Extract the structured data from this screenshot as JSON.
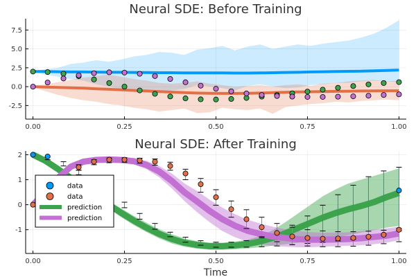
{
  "chart_data": [
    {
      "type": "line",
      "title": "Neural SDE: Before Training",
      "xlabel": "",
      "ylabel": "",
      "xlim": [
        -0.02,
        1.02
      ],
      "ylim": [
        -4.3,
        9.0
      ],
      "xticks": [
        0.0,
        0.25,
        0.5,
        0.75,
        1.0
      ],
      "xtick_labels": [
        "0.00",
        "0.25",
        "0.50",
        "0.75",
        "1.00"
      ],
      "yticks": [
        -2.5,
        0.0,
        2.5,
        5.0,
        7.5
      ],
      "ytick_labels": [
        "-2.5",
        "0.0",
        "2.5",
        "5.0",
        "7.5"
      ],
      "grid": true,
      "legend": false,
      "x": [
        0.0,
        0.0345,
        0.069,
        0.1034,
        0.1379,
        0.1724,
        0.2069,
        0.2414,
        0.2759,
        0.3103,
        0.3448,
        0.3793,
        0.4138,
        0.4483,
        0.4828,
        0.5172,
        0.5517,
        0.5862,
        0.6207,
        0.6552,
        0.6897,
        0.7241,
        0.7586,
        0.7931,
        0.8276,
        0.8621,
        0.8966,
        0.931,
        0.9655,
        1.0
      ],
      "series": [
        {
          "kind": "band",
          "color": "#009af9",
          "opacity": 0.2,
          "upper": [
            2.1,
            2.3,
            2.5,
            3.0,
            3.2,
            3.5,
            3.3,
            3.6,
            4.0,
            4.2,
            4.6,
            4.5,
            4.2,
            4.9,
            5.1,
            5.4,
            4.8,
            5.3,
            5.6,
            5.0,
            5.3,
            5.6,
            5.4,
            5.7,
            5.9,
            6.1,
            6.5,
            7.0,
            7.8,
            8.8
          ],
          "lower": [
            1.9,
            1.6,
            1.3,
            1.0,
            0.8,
            0.3,
            0.0,
            -0.3,
            -0.5,
            -0.7,
            -0.8,
            -0.5,
            -0.3,
            0.2,
            0.0,
            -0.2,
            -0.5,
            0.1,
            0.3,
            0.0,
            -0.2,
            -0.1,
            0.2,
            0.3,
            0.5,
            0.5,
            0.7,
            0.8,
            0.7,
            0.6
          ]
        },
        {
          "kind": "band",
          "color": "#e26f46",
          "opacity": 0.25,
          "upper": [
            0.1,
            0.3,
            0.6,
            0.9,
            1.2,
            1.4,
            1.6,
            1.3,
            1.0,
            0.8,
            0.5,
            0.4,
            0.5,
            0.7,
            0.4,
            0.2,
            0.0,
            0.1,
            0.2,
            0.0,
            0.2,
            0.3,
            0.1,
            0.4,
            0.5,
            0.7,
            0.8,
            0.9,
            0.7,
            0.8
          ],
          "lower": [
            -0.1,
            -0.6,
            -1.1,
            -1.5,
            -1.8,
            -2.0,
            -2.3,
            -2.5,
            -2.8,
            -3.0,
            -3.3,
            -3.1,
            -2.9,
            -3.5,
            -3.4,
            -2.8,
            -3.0,
            -3.1,
            -2.9,
            -3.6,
            -2.7,
            -2.5,
            -2.3,
            -2.2,
            -2.0,
            -2.1,
            -1.9,
            -1.8,
            -1.7,
            -1.8
          ]
        },
        {
          "kind": "line",
          "color": "#009af9",
          "width": 4,
          "values": [
            2.0,
            2.0,
            1.97,
            1.95,
            1.95,
            1.93,
            1.9,
            1.9,
            1.88,
            1.87,
            1.85,
            1.85,
            1.83,
            1.83,
            1.82,
            1.82,
            1.8,
            1.8,
            1.82,
            1.85,
            1.88,
            1.9,
            1.95,
            1.97,
            2.0,
            2.03,
            2.05,
            2.1,
            2.15,
            2.2
          ]
        },
        {
          "kind": "line",
          "color": "#e26f46",
          "width": 4,
          "values": [
            0.0,
            -0.05,
            -0.1,
            -0.15,
            -0.2,
            -0.28,
            -0.35,
            -0.42,
            -0.5,
            -0.58,
            -0.65,
            -0.72,
            -0.8,
            -0.85,
            -0.88,
            -0.9,
            -0.9,
            -0.88,
            -0.85,
            -0.8,
            -0.75,
            -0.7,
            -0.68,
            -0.65,
            -0.62,
            -0.6,
            -0.58,
            -0.57,
            -0.55,
            -0.55
          ]
        },
        {
          "kind": "scatter",
          "color": "#3da44d",
          "x": [
            0.0,
            0.04,
            0.0833,
            0.125,
            0.1667,
            0.2083,
            0.25,
            0.2917,
            0.3333,
            0.375,
            0.4167,
            0.4583,
            0.5,
            0.5417,
            0.5833,
            0.625,
            0.6667,
            0.7083,
            0.75,
            0.7917,
            0.8333,
            0.875,
            0.9167,
            0.9583,
            1.0
          ],
          "values": [
            2.0,
            1.93,
            1.72,
            1.38,
            0.95,
            0.48,
            0.0,
            -0.5,
            -0.95,
            -1.3,
            -1.55,
            -1.68,
            -1.7,
            -1.63,
            -1.5,
            -1.32,
            -1.1,
            -0.88,
            -0.65,
            -0.4,
            -0.15,
            0.08,
            0.3,
            0.48,
            0.6
          ]
        },
        {
          "kind": "scatter",
          "color": "#c271d2",
          "x": [
            0.0,
            0.04,
            0.0833,
            0.125,
            0.1667,
            0.2083,
            0.25,
            0.2917,
            0.3333,
            0.375,
            0.4167,
            0.4583,
            0.5,
            0.5417,
            0.5833,
            0.625,
            0.6667,
            0.7083,
            0.75,
            0.7917,
            0.8333,
            0.875,
            0.9167,
            0.9583,
            1.0
          ],
          "values": [
            0.0,
            0.55,
            1.08,
            1.5,
            1.78,
            1.9,
            1.86,
            1.7,
            1.4,
            1.02,
            0.58,
            0.13,
            -0.28,
            -0.62,
            -0.9,
            -1.1,
            -1.24,
            -1.32,
            -1.36,
            -1.36,
            -1.33,
            -1.28,
            -1.2,
            -1.1,
            -1.02
          ]
        }
      ]
    },
    {
      "type": "line",
      "title": "Neural SDE: After Training",
      "xlabel": "Time",
      "ylabel": "",
      "xlim": [
        -0.02,
        1.02
      ],
      "ylim": [
        -1.95,
        2.15
      ],
      "xticks": [
        0.0,
        0.25,
        0.5,
        0.75,
        1.0
      ],
      "xtick_labels": [
        "0.00",
        "0.25",
        "0.50",
        "0.75",
        "1.00"
      ],
      "yticks": [
        -1,
        0,
        1,
        2
      ],
      "ytick_labels": [
        "-1",
        "0",
        "1",
        "2"
      ],
      "grid": true,
      "legend": {
        "position": "left",
        "entries": [
          {
            "label": "data",
            "kind": "marker",
            "color": "#009af9"
          },
          {
            "label": "data",
            "kind": "marker",
            "color": "#e26f46"
          },
          {
            "label": "prediction",
            "kind": "line",
            "color": "#3da44d"
          },
          {
            "label": "prediction",
            "kind": "line",
            "color": "#c271d2"
          }
        ]
      },
      "x": [
        0.0,
        0.0345,
        0.069,
        0.1034,
        0.1379,
        0.1724,
        0.2069,
        0.2414,
        0.2759,
        0.3103,
        0.3448,
        0.3793,
        0.4138,
        0.4483,
        0.4828,
        0.5172,
        0.5517,
        0.5862,
        0.6207,
        0.6552,
        0.6897,
        0.7241,
        0.7586,
        0.7931,
        0.8276,
        0.8621,
        0.8966,
        0.931,
        0.9655,
        1.0
      ],
      "series": [
        {
          "kind": "band",
          "color": "#3da44d",
          "opacity": 0.45,
          "upper": [
            2.0,
            1.85,
            1.55,
            1.2,
            0.85,
            0.5,
            0.15,
            -0.15,
            -0.45,
            -0.72,
            -0.98,
            -1.18,
            -1.35,
            -1.46,
            -1.52,
            -1.52,
            -1.48,
            -1.4,
            -1.25,
            -1.02,
            -0.7,
            -0.35,
            0.0,
            0.35,
            0.62,
            0.85,
            1.0,
            1.15,
            1.3,
            1.45
          ],
          "lower": [
            2.0,
            1.65,
            1.3,
            0.95,
            0.55,
            0.2,
            -0.15,
            -0.5,
            -0.82,
            -1.1,
            -1.35,
            -1.55,
            -1.68,
            -1.76,
            -1.8,
            -1.8,
            -1.78,
            -1.75,
            -1.7,
            -1.64,
            -1.58,
            -1.52,
            -1.45,
            -1.38,
            -1.3,
            -1.22,
            -1.12,
            -1.02,
            -0.92,
            -0.85
          ]
        },
        {
          "kind": "band",
          "color": "#c271d2",
          "opacity": 0.45,
          "upper": [
            0.05,
            0.6,
            1.2,
            1.65,
            1.82,
            1.88,
            1.9,
            1.88,
            1.85,
            1.75,
            1.55,
            1.25,
            0.85,
            0.55,
            0.2,
            -0.12,
            -0.38,
            -0.6,
            -0.75,
            -0.88,
            -0.98,
            -1.05,
            -1.1,
            -1.12,
            -1.12,
            -1.1,
            -1.06,
            -1.0,
            -0.95,
            -0.88
          ],
          "lower": [
            -0.05,
            0.4,
            0.95,
            1.4,
            1.62,
            1.7,
            1.72,
            1.7,
            1.62,
            1.42,
            1.1,
            0.65,
            0.15,
            -0.3,
            -0.7,
            -1.05,
            -1.3,
            -1.48,
            -1.58,
            -1.65,
            -1.68,
            -1.7,
            -1.7,
            -1.68,
            -1.66,
            -1.64,
            -1.62,
            -1.58,
            -1.52,
            -1.42
          ]
        },
        {
          "kind": "line",
          "color": "#3da44d",
          "width": 9,
          "values": [
            2.0,
            1.75,
            1.42,
            1.07,
            0.7,
            0.35,
            0.0,
            -0.33,
            -0.64,
            -0.92,
            -1.17,
            -1.37,
            -1.52,
            -1.61,
            -1.66,
            -1.66,
            -1.63,
            -1.57,
            -1.47,
            -1.33,
            -1.14,
            -0.93,
            -0.72,
            -0.51,
            -0.33,
            -0.18,
            -0.05,
            0.1,
            0.3,
            0.47
          ]
        },
        {
          "kind": "line",
          "color": "#c271d2",
          "width": 9,
          "values": [
            0.0,
            0.5,
            1.08,
            1.52,
            1.72,
            1.79,
            1.81,
            1.79,
            1.74,
            1.59,
            1.33,
            0.95,
            0.5,
            0.13,
            -0.25,
            -0.58,
            -0.84,
            -1.04,
            -1.17,
            -1.27,
            -1.33,
            -1.38,
            -1.4,
            -1.4,
            -1.39,
            -1.37,
            -1.34,
            -1.29,
            -1.24,
            -1.15
          ]
        },
        {
          "kind": "errorbars",
          "color": "#009af9",
          "x": [
            0.0,
            0.04,
            0.0833,
            0.125,
            0.1667,
            0.2083,
            0.25,
            0.2917,
            0.3333,
            0.375,
            0.4167,
            0.4583,
            0.5,
            0.5417,
            0.5833,
            0.625,
            0.6667,
            0.7083,
            0.75,
            0.7917,
            0.8333,
            0.875,
            0.9167,
            0.9583,
            1.0
          ],
          "upper": [
            2.0,
            1.92,
            1.72,
            1.38,
            1.0,
            0.55,
            0.1,
            -0.35,
            -0.75,
            -1.1,
            -1.3,
            -1.44,
            -1.5,
            -1.5,
            -1.44,
            -1.32,
            -1.12,
            -0.82,
            -0.45,
            -0.02,
            0.4,
            0.78,
            1.12,
            1.35,
            1.5
          ],
          "lower": [
            2.0,
            1.8,
            1.55,
            1.2,
            0.82,
            0.35,
            -0.12,
            -0.58,
            -0.98,
            -1.28,
            -1.5,
            -1.62,
            -1.7,
            -1.7,
            -1.7,
            -1.68,
            -1.65,
            -1.6,
            -1.55,
            -1.5,
            -1.45,
            -1.38,
            -1.28,
            -1.18,
            -1.05
          ]
        },
        {
          "kind": "errorbars",
          "color": "#e26f46",
          "x": [
            0.0,
            0.04,
            0.0833,
            0.125,
            0.1667,
            0.2083,
            0.25,
            0.2917,
            0.3333,
            0.375,
            0.4167,
            0.4583,
            0.5,
            0.5417,
            0.5833,
            0.625,
            0.6667,
            0.7083,
            0.75,
            0.7917,
            0.8333,
            0.875,
            0.9167,
            0.9583,
            1.0
          ],
          "upper": [
            0.0,
            0.6,
            1.15,
            1.6,
            1.8,
            1.87,
            1.88,
            1.86,
            1.83,
            1.7,
            1.42,
            1.05,
            0.6,
            0.15,
            -0.2,
            -0.5,
            -0.75,
            -0.9,
            -1.0,
            -1.05,
            -1.08,
            -1.08,
            -1.06,
            -1.02,
            -0.95
          ],
          "lower": [
            0.0,
            0.38,
            0.92,
            1.38,
            1.6,
            1.68,
            1.7,
            1.66,
            1.58,
            1.38,
            1.0,
            0.5,
            -0.02,
            -0.5,
            -0.95,
            -1.28,
            -1.48,
            -1.6,
            -1.65,
            -1.68,
            -1.68,
            -1.66,
            -1.62,
            -1.56,
            -1.48
          ]
        },
        {
          "kind": "scatter",
          "color": "#009af9",
          "x": [
            0.0,
            0.04,
            1.0
          ],
          "values": [
            2.0,
            1.93,
            0.57
          ]
        },
        {
          "kind": "scatter",
          "color": "#e26f46",
          "x": [
            0.0,
            0.04,
            0.0833,
            0.125,
            0.1667,
            0.2083,
            0.25,
            0.2917,
            0.3333,
            0.375,
            0.4167,
            0.4583,
            0.5,
            0.5417,
            0.5833,
            0.625,
            0.6667,
            0.7083,
            0.75,
            0.7917,
            0.8333,
            0.875,
            0.9167,
            0.9583,
            1.0
          ],
          "values": [
            0.0,
            0.5,
            1.05,
            1.5,
            1.72,
            1.8,
            1.8,
            1.77,
            1.72,
            1.55,
            1.25,
            0.82,
            0.3,
            -0.18,
            -0.58,
            -0.9,
            -1.13,
            -1.27,
            -1.33,
            -1.36,
            -1.35,
            -1.33,
            -1.28,
            -1.2,
            -1.0
          ]
        }
      ]
    }
  ]
}
